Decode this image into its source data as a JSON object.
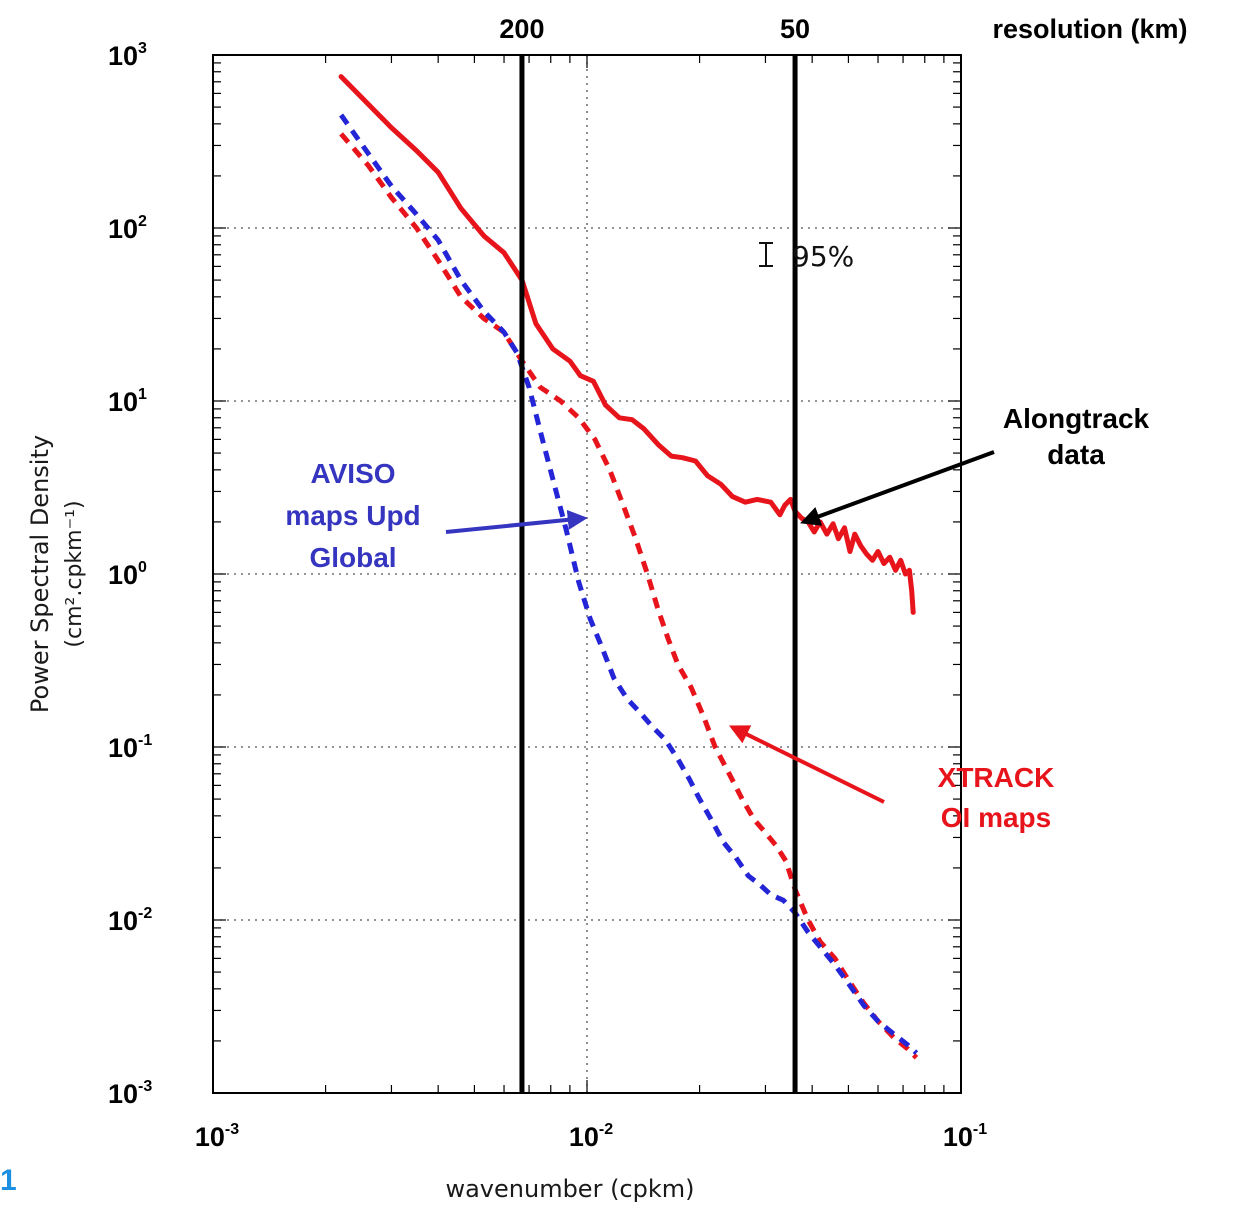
{
  "chart_data": {
    "type": "line",
    "xlabel": "wavenumber (cpkm)",
    "ylabel": "Power Spectral Density",
    "ylabel_unit": "(cm².cpkm⁻¹)",
    "x_scale": "log",
    "y_scale": "log",
    "xlim": [
      0.001,
      0.1
    ],
    "ylim": [
      0.001,
      1000
    ],
    "grid": "dotted at decades",
    "x_ticks": [
      {
        "base": "10",
        "exp": "-3"
      },
      {
        "base": "10",
        "exp": "-2"
      },
      {
        "base": "10",
        "exp": "-1"
      }
    ],
    "y_ticks": [
      {
        "base": "10",
        "exp": "3"
      },
      {
        "base": "10",
        "exp": "2"
      },
      {
        "base": "10",
        "exp": "1"
      },
      {
        "base": "10",
        "exp": "0"
      },
      {
        "base": "10",
        "exp": "-1"
      },
      {
        "base": "10",
        "exp": "-2"
      },
      {
        "base": "10",
        "exp": "-3"
      }
    ],
    "resolution_axis_label": "resolution (km)",
    "resolution_lines": [
      {
        "label": "200",
        "x": 0.0067
      },
      {
        "label": "50",
        "x": 0.036
      }
    ],
    "confidence_label": "95%",
    "series": [
      {
        "id": "alongtrack",
        "style": "solid",
        "color": "#e8141c",
        "x": [
          0.0022,
          0.0026,
          0.003,
          0.0035,
          0.004,
          0.0046,
          0.0053,
          0.006,
          0.0067,
          0.0073,
          0.0081,
          0.009,
          0.0096,
          0.0104,
          0.0112,
          0.0122,
          0.0132,
          0.0142,
          0.0155,
          0.0168,
          0.018,
          0.0195,
          0.021,
          0.0228,
          0.0245,
          0.0265,
          0.0285,
          0.031,
          0.0328,
          0.0338,
          0.035,
          0.036,
          0.0375,
          0.039,
          0.0405,
          0.042,
          0.0438,
          0.0455,
          0.047,
          0.0488,
          0.0505,
          0.052,
          0.054,
          0.056,
          0.058,
          0.06,
          0.0622,
          0.0645,
          0.0668,
          0.069,
          0.071,
          0.0728,
          0.0738,
          0.0745
        ],
        "y": [
          750,
          520,
          380,
          280,
          210,
          130,
          90,
          72,
          50,
          28,
          20,
          17,
          14,
          13,
          9.5,
          8,
          7.8,
          6.9,
          5.6,
          4.8,
          4.7,
          4.5,
          3.7,
          3.3,
          2.8,
          2.6,
          2.7,
          2.6,
          2.2,
          2.5,
          2.7,
          2.3,
          2.1,
          2.0,
          1.75,
          2.0,
          1.7,
          1.95,
          1.6,
          1.85,
          1.35,
          1.7,
          1.45,
          1.3,
          1.2,
          1.35,
          1.15,
          1.25,
          1.05,
          1.2,
          1.0,
          1.05,
          0.8,
          0.6
        ]
      },
      {
        "id": "xtrack-oi",
        "style": "dashed",
        "color": "#e8141c",
        "x": [
          0.0022,
          0.0026,
          0.003,
          0.0035,
          0.004,
          0.0046,
          0.0053,
          0.006,
          0.0067,
          0.0075,
          0.0085,
          0.0095,
          0.0105,
          0.0115,
          0.0125,
          0.0135,
          0.0145,
          0.0155,
          0.0165,
          0.0175,
          0.019,
          0.0205,
          0.022,
          0.024,
          0.026,
          0.028,
          0.03,
          0.032,
          0.034,
          0.036,
          0.039,
          0.042,
          0.046,
          0.05,
          0.055,
          0.06,
          0.066,
          0.072,
          0.076
        ],
        "y": [
          350,
          230,
          150,
          100,
          65,
          40,
          30,
          25,
          17,
          12,
          10,
          8,
          6,
          4,
          2.5,
          1.6,
          1.0,
          0.62,
          0.42,
          0.3,
          0.22,
          0.15,
          0.1,
          0.07,
          0.05,
          0.038,
          0.032,
          0.027,
          0.022,
          0.015,
          0.01,
          0.0075,
          0.006,
          0.0045,
          0.0033,
          0.0026,
          0.0021,
          0.0018,
          0.0016
        ]
      },
      {
        "id": "aviso",
        "style": "dashed",
        "color": "#2525d8",
        "x": [
          0.0022,
          0.0026,
          0.003,
          0.0035,
          0.004,
          0.0046,
          0.0053,
          0.006,
          0.0065,
          0.007,
          0.0076,
          0.0082,
          0.0088,
          0.0095,
          0.0102,
          0.011,
          0.0118,
          0.0128,
          0.0138,
          0.015,
          0.0162,
          0.0175,
          0.0188,
          0.02,
          0.0215,
          0.0232,
          0.025,
          0.027,
          0.029,
          0.031,
          0.0335,
          0.036,
          0.039,
          0.042,
          0.046,
          0.05,
          0.055,
          0.06,
          0.066,
          0.072,
          0.076
        ],
        "y": [
          450,
          270,
          175,
          120,
          85,
          50,
          33,
          25,
          19,
          12,
          6,
          3.2,
          1.8,
          0.9,
          0.55,
          0.37,
          0.25,
          0.19,
          0.16,
          0.13,
          0.11,
          0.085,
          0.065,
          0.05,
          0.038,
          0.028,
          0.023,
          0.018,
          0.016,
          0.014,
          0.013,
          0.011,
          0.0085,
          0.007,
          0.0055,
          0.0043,
          0.0032,
          0.0026,
          0.0022,
          0.0019,
          0.0017
        ]
      }
    ],
    "annotations": [
      {
        "id": "alongtrack",
        "lines": [
          "Alongtrack",
          "data"
        ],
        "color": "#000000",
        "point_x": 0.038,
        "point_y": 2.0
      },
      {
        "id": "aviso",
        "lines": [
          "AVISO",
          "maps Upd",
          "Global"
        ],
        "color": "#3535c0",
        "point_x": 0.0098,
        "point_y": 2.1
      },
      {
        "id": "xtrack",
        "lines": [
          "XTRACK",
          "OI maps"
        ],
        "color": "#e8141c",
        "point_x": 0.0245,
        "point_y": 0.13
      }
    ]
  },
  "corner_label": "1"
}
